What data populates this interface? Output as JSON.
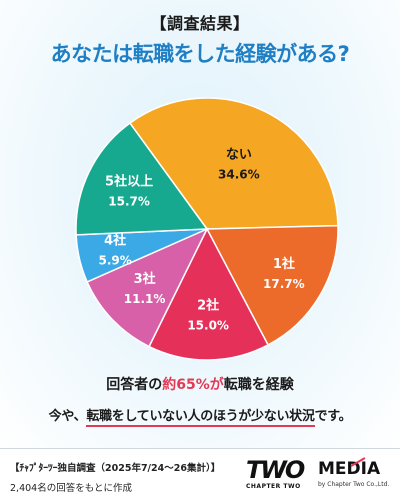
{
  "header": {
    "label": "【調査結果】",
    "title": "あなたは転職をした経験がある?"
  },
  "chart_data": {
    "type": "pie",
    "title": "あなたは転職をした経験がある?",
    "slices": [
      {
        "label": "ない",
        "value": 34.6,
        "display": "34.6%",
        "color": "#f5a623"
      },
      {
        "label": "1社",
        "value": 17.7,
        "display": "17.7%",
        "color": "#ec6a2a"
      },
      {
        "label": "2社",
        "value": 15.0,
        "display": "15.0%",
        "color": "#e5305a"
      },
      {
        "label": "3社",
        "value": 11.1,
        "display": "11.1%",
        "color": "#d860a8"
      },
      {
        "label": "4社",
        "value": 5.9,
        "display": "5.9%",
        "color": "#3aa9e6"
      },
      {
        "label": "5社以上",
        "value": 15.7,
        "display": "15.7%",
        "color": "#17a98f"
      }
    ]
  },
  "summary": {
    "prefix": "回答者の",
    "highlight": "約65%が",
    "suffix": "転職を経験"
  },
  "note": {
    "pre": "今や、",
    "underlined": "転職をしていない人のほうが少ない状況",
    "post": "です。"
  },
  "footer": {
    "source": "【ﾁｬﾌﾟﾀｰﾂｰ独自調査（2025年7/24〜26集計）】",
    "basis": "2,404名の回答をもとに作成"
  },
  "logo": {
    "mark": "TWO",
    "sub": "CHAPTER TWO",
    "media": "MEDIA",
    "by": "by Chapter Two Co.,Ltd."
  }
}
